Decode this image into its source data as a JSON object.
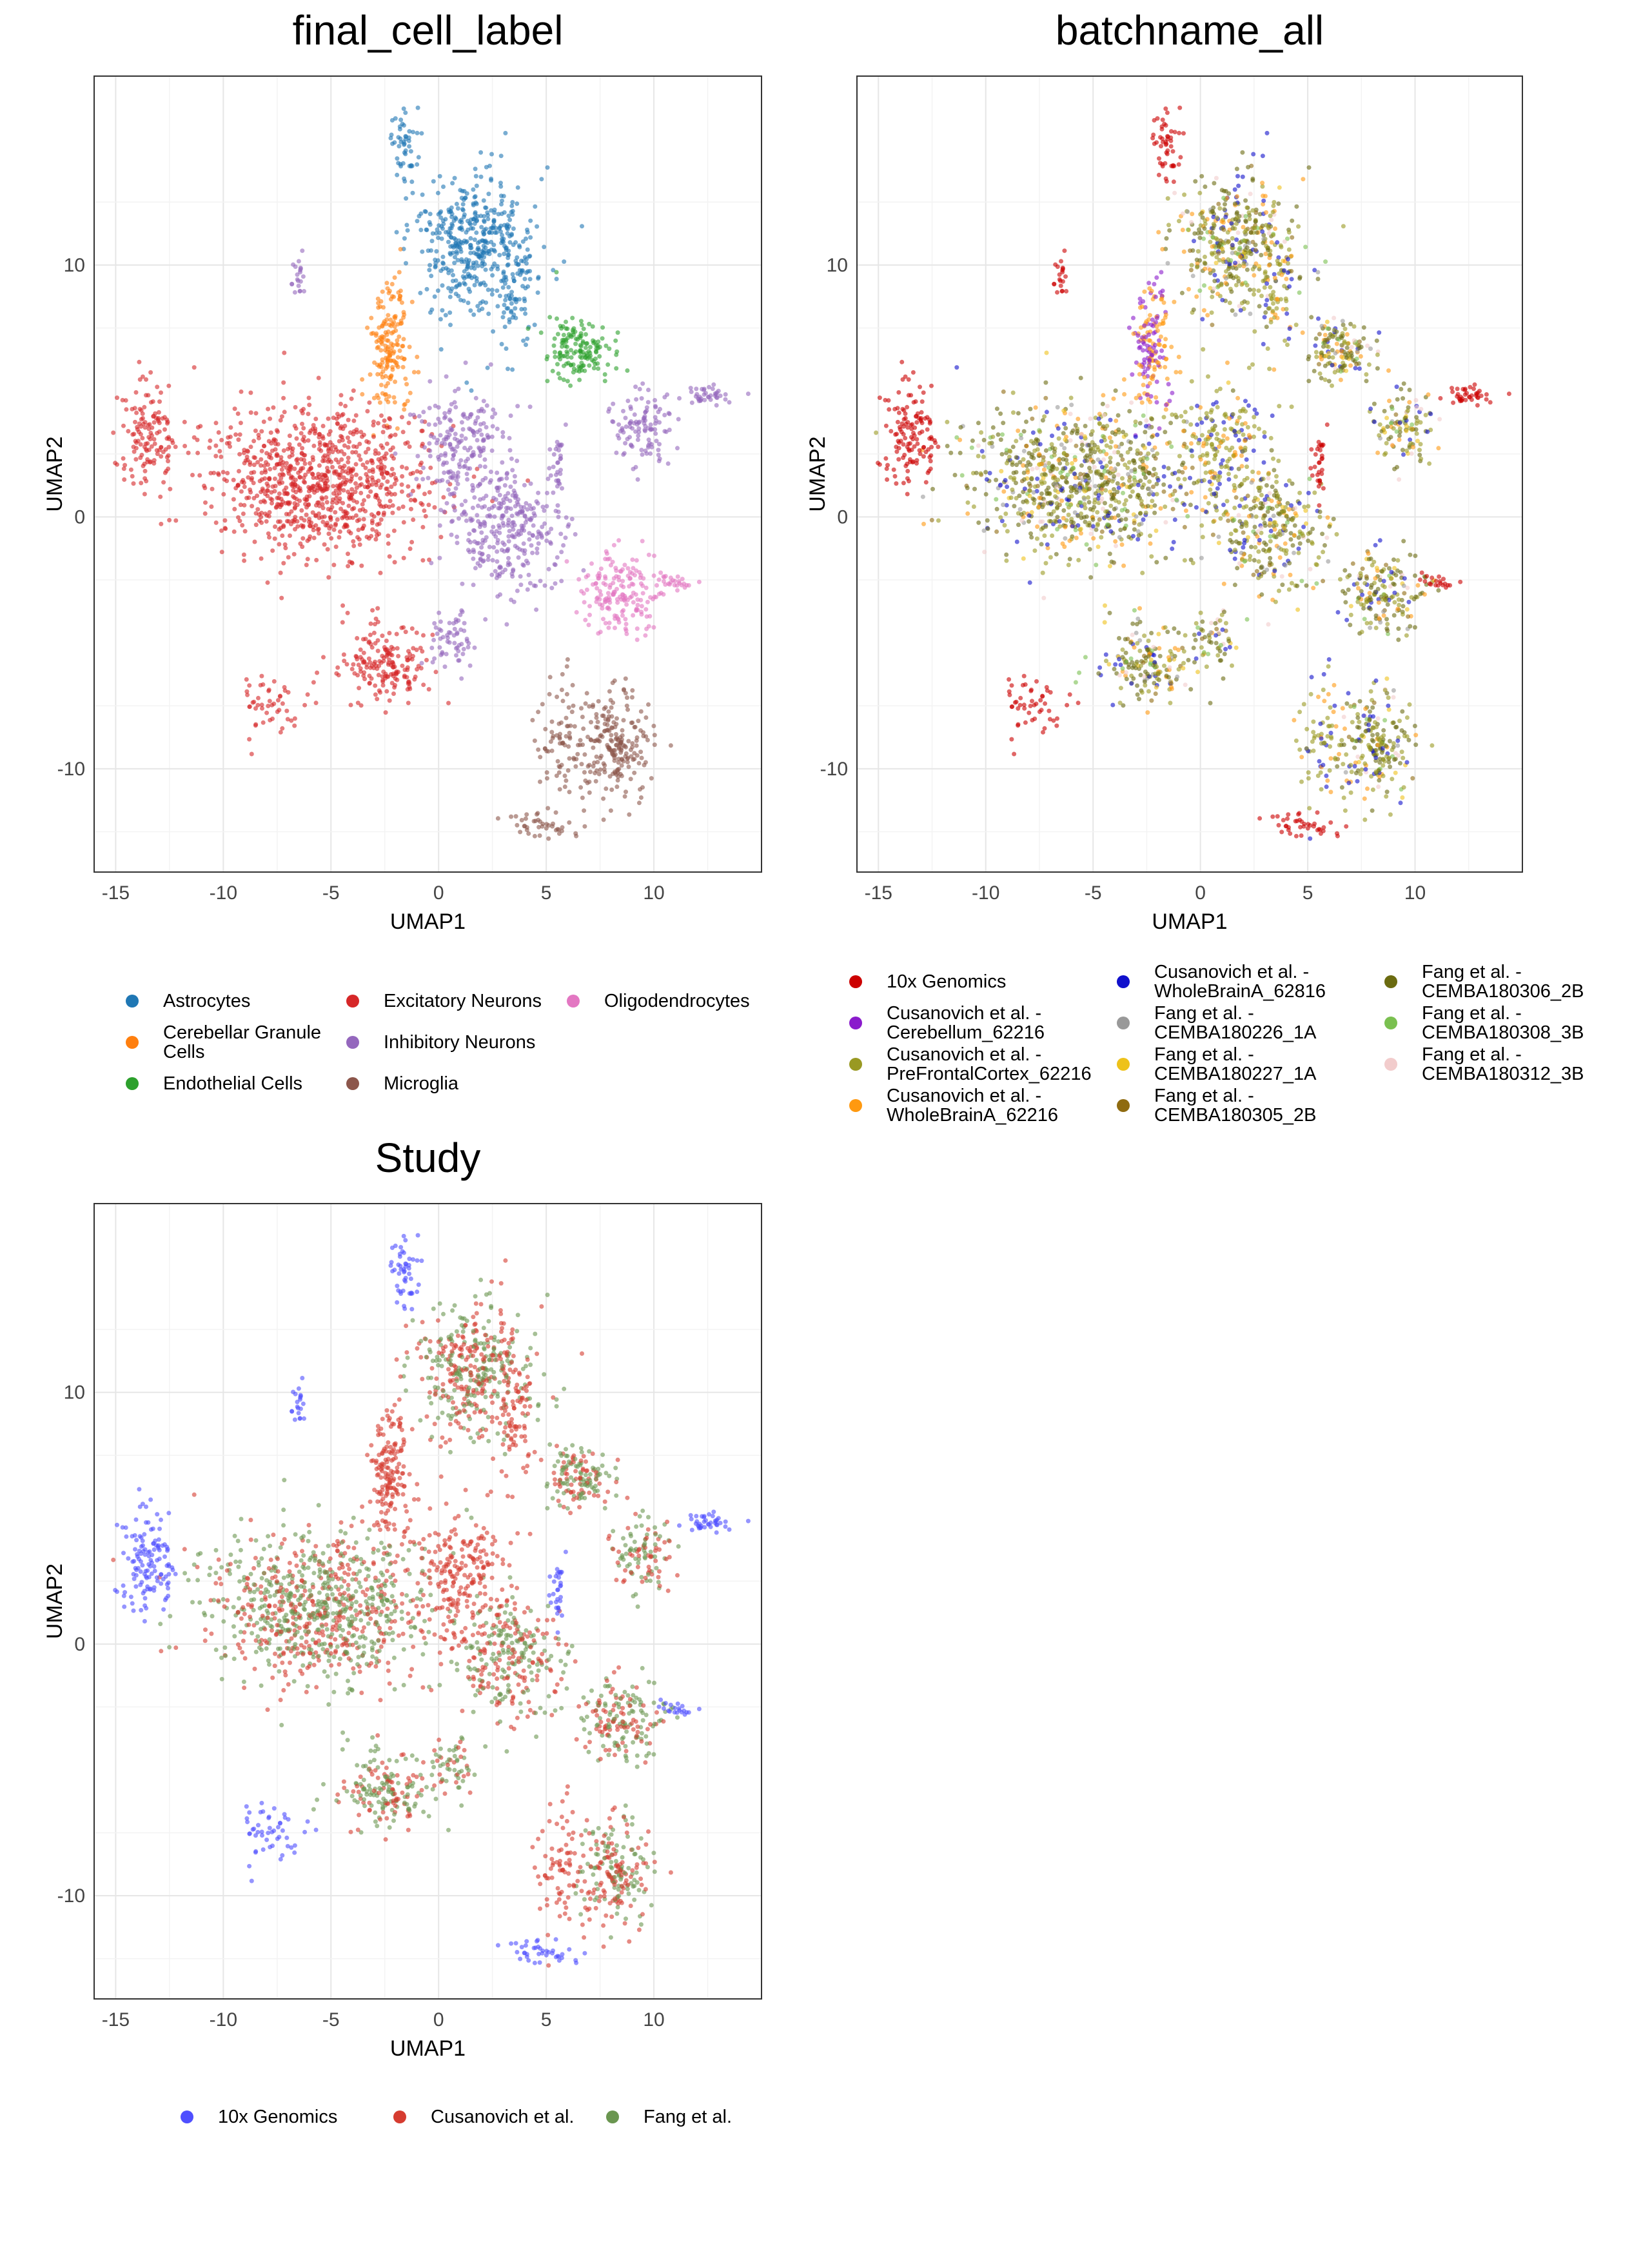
{
  "chart_data": [
    {
      "type": "scatter",
      "title": "final_cell_label",
      "xlabel": "UMAP1",
      "ylabel": "UMAP2",
      "xlim": [
        -16,
        15
      ],
      "ylim": [
        -14.1,
        17.5
      ],
      "xticks": [
        "-15",
        "-10",
        "-5",
        "0",
        "5",
        "10"
      ],
      "yticks": [
        "-10",
        "0",
        "10"
      ],
      "grid": true,
      "color_by": "celltype",
      "legend": "bottom",
      "legend_entries": [
        {
          "label": "Astrocytes",
          "color": "#1f77b4"
        },
        {
          "label": "Cerebellar Granule\nCells",
          "color": "#ff7f0e"
        },
        {
          "label": "Endothelial Cells",
          "color": "#2ca02c"
        },
        {
          "label": "Excitatory Neurons",
          "color": "#d62728"
        },
        {
          "label": "Inhibitory Neurons",
          "color": "#9467bd"
        },
        {
          "label": "Microglia",
          "color": "#8c564b"
        },
        {
          "label": "Oligodendrocytes",
          "color": "#e377c2"
        }
      ]
    },
    {
      "type": "scatter",
      "title": "batchname_all",
      "xlabel": "UMAP1",
      "ylabel": "UMAP2",
      "xlim": [
        -16,
        15
      ],
      "ylim": [
        -14.1,
        17.5
      ],
      "xticks": [
        "-15",
        "-10",
        "-5",
        "0",
        "5",
        "10"
      ],
      "yticks": [
        "-10",
        "0",
        "10"
      ],
      "grid": true,
      "color_by": "batch",
      "legend": "bottom",
      "legend_entries": [
        {
          "label": "10x Genomics",
          "color": "#cc0000"
        },
        {
          "label": "Cusanovich et al. -\nCerebellum_62216",
          "color": "#8a1acc"
        },
        {
          "label": "Cusanovich et al. -\nPreFrontalCortex_62216",
          "color": "#999922"
        },
        {
          "label": "Cusanovich et al. -\nWholeBrainA_62216",
          "color": "#ff9910"
        },
        {
          "label": "Cusanovich et al. -\nWholeBrainA_62816",
          "color": "#1010cc"
        },
        {
          "label": "Fang et al. -\nCEMBA180226_1A",
          "color": "#999999"
        },
        {
          "label": "Fang et al. -\nCEMBA180227_1A",
          "color": "#eec21a"
        },
        {
          "label": "Fang et al. -\nCEMBA180305_2B",
          "color": "#8f6b10"
        },
        {
          "label": "Fang et al. -\nCEMBA180306_2B",
          "color": "#6b6b10"
        },
        {
          "label": "Fang et al. -\nCEMBA180308_3B",
          "color": "#7ac050"
        },
        {
          "label": "Fang et al. -\nCEMBA180312_3B",
          "color": "#f2cccc"
        }
      ]
    },
    {
      "type": "scatter",
      "title": "Study",
      "xlabel": "UMAP1",
      "ylabel": "UMAP2",
      "xlim": [
        -16,
        15
      ],
      "ylim": [
        -14.1,
        17.5
      ],
      "xticks": [
        "-15",
        "-10",
        "-5",
        "0",
        "5",
        "10"
      ],
      "yticks": [
        "-10",
        "0",
        "10"
      ],
      "grid": true,
      "color_by": "study",
      "legend": "bottom",
      "legend_entries": [
        {
          "label": "10x Genomics",
          "color": "#4f4fff"
        },
        {
          "label": "Cusanovich et al.",
          "color": "#d63c30"
        },
        {
          "label": "Fang et al.",
          "color": "#6a9650"
        }
      ]
    }
  ],
  "clusters": [
    {
      "celltype": 0,
      "study": "mix",
      "cx": 1.6,
      "cy": 11,
      "sx": 1.3,
      "sy": 1.4,
      "n": 420
    },
    {
      "celltype": 0,
      "study": "cus",
      "cx": 3.5,
      "cy": 9,
      "sx": 0.4,
      "sy": 1.5,
      "n": 80
    },
    {
      "celltype": 0,
      "study": "x10",
      "cx": -1.6,
      "cy": 14.8,
      "sx": 0.3,
      "sy": 0.7,
      "n": 50
    },
    {
      "celltype": 1,
      "study": "cus",
      "cx": -2.3,
      "cy": 6.6,
      "sx": 0.45,
      "sy": 1.5,
      "n": 170
    },
    {
      "celltype": 2,
      "study": "mix",
      "cx": 6.5,
      "cy": 6.6,
      "sx": 0.8,
      "sy": 0.6,
      "n": 150
    },
    {
      "celltype": 3,
      "study": "mix",
      "cx": -5.5,
      "cy": 1.4,
      "sx": 2.7,
      "sy": 1.5,
      "n": 900
    },
    {
      "celltype": 3,
      "study": "x10",
      "cx": -13.6,
      "cy": 3.5,
      "sx": 0.6,
      "sy": 1.0,
      "n": 130
    },
    {
      "celltype": 3,
      "study": "mix",
      "cx": -2.5,
      "cy": -5.8,
      "sx": 1.0,
      "sy": 0.8,
      "n": 180
    },
    {
      "celltype": 3,
      "study": "x10",
      "cx": -8,
      "cy": -7.3,
      "sx": 0.8,
      "sy": 0.6,
      "n": 50
    },
    {
      "celltype": 4,
      "study": "mix",
      "cx": 3.3,
      "cy": -0.5,
      "sx": 1.2,
      "sy": 1.3,
      "n": 300
    },
    {
      "celltype": 4,
      "study": "cus",
      "cx": 1.0,
      "cy": 3,
      "sx": 1.1,
      "sy": 1.2,
      "n": 200
    },
    {
      "celltype": 4,
      "study": "mix",
      "cx": 9.5,
      "cy": 3.7,
      "sx": 0.7,
      "sy": 0.7,
      "n": 110
    },
    {
      "celltype": 4,
      "study": "x10",
      "cx": 12.5,
      "cy": 4.8,
      "sx": 0.6,
      "sy": 0.2,
      "n": 40
    },
    {
      "celltype": 4,
      "study": "x10",
      "cx": -6.5,
      "cy": 9.5,
      "sx": 0.2,
      "sy": 0.4,
      "n": 20
    },
    {
      "celltype": 4,
      "study": "x10",
      "cx": 5.5,
      "cy": 2,
      "sx": 0.2,
      "sy": 0.7,
      "n": 30
    },
    {
      "celltype": 4,
      "study": "mix",
      "cx": 0.6,
      "cy": -5,
      "sx": 0.5,
      "sy": 0.6,
      "n": 60
    },
    {
      "celltype": 6,
      "study": "mix",
      "cx": 8.6,
      "cy": -3,
      "sx": 1.0,
      "sy": 0.8,
      "n": 180
    },
    {
      "celltype": 6,
      "study": "x10",
      "cx": 11.2,
      "cy": -2.6,
      "sx": 0.4,
      "sy": 0.15,
      "n": 20
    },
    {
      "celltype": 5,
      "study": "mix",
      "cx": 8.3,
      "cy": -9,
      "sx": 0.9,
      "sy": 1.1,
      "n": 200
    },
    {
      "celltype": 5,
      "study": "cus",
      "cx": 5.8,
      "cy": -9,
      "sx": 0.6,
      "sy": 1.5,
      "n": 90
    },
    {
      "celltype": 5,
      "study": "x10",
      "cx": 5,
      "cy": -12.3,
      "sx": 0.8,
      "sy": 0.25,
      "n": 40
    }
  ]
}
